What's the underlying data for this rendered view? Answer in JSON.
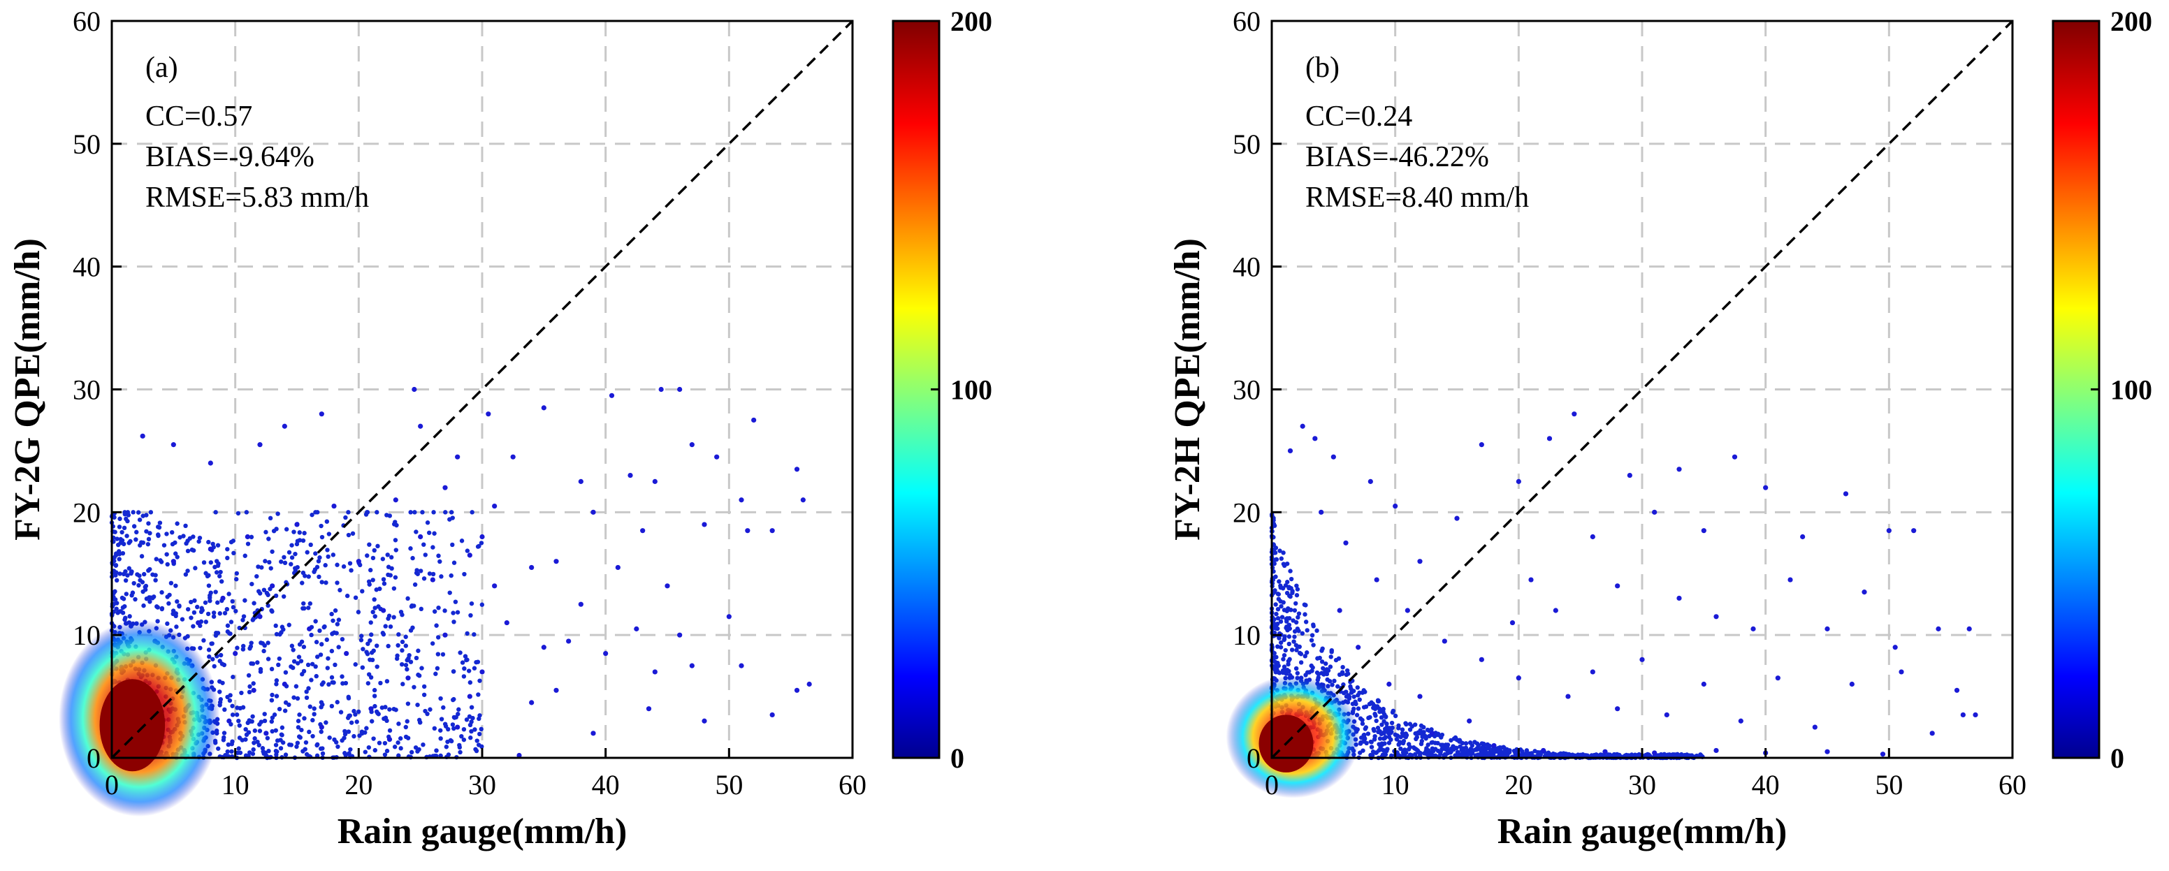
{
  "chart_data": [
    {
      "type": "scatter",
      "panel_label": "(a)",
      "xlabel": "Rain gauge(mm/h)",
      "ylabel": "FY-2G QPE(mm/h)",
      "xlim": [
        0,
        60
      ],
      "ylim": [
        0,
        60
      ],
      "xticks": [
        0,
        10,
        20,
        30,
        40,
        50,
        60
      ],
      "yticks": [
        0,
        10,
        20,
        30,
        40,
        50,
        60
      ],
      "grid": true,
      "reference_line": "1:1 dashed",
      "stats": [
        "CC=0.57",
        "BIAS=-9.64%",
        "RMSE=5.83 mm/h"
      ],
      "colorbar": {
        "min": 0,
        "max": 200,
        "ticks": [
          0,
          100,
          200
        ],
        "colormap": "jet"
      },
      "density_core": {
        "x_range": [
          0,
          4
        ],
        "y_range": [
          0,
          6
        ]
      },
      "sample_points": [
        [
          2.5,
          26.2
        ],
        [
          5.0,
          25.5
        ],
        [
          8.0,
          24.0
        ],
        [
          12.0,
          25.5
        ],
        [
          14.0,
          27.0
        ],
        [
          17.0,
          28.0
        ],
        [
          24.5,
          30.0
        ],
        [
          25.0,
          27.0
        ],
        [
          28.0,
          24.5
        ],
        [
          30.5,
          28.0
        ],
        [
          35.0,
          28.5
        ],
        [
          44.5,
          30.0
        ],
        [
          46.0,
          30.0
        ],
        [
          52.0,
          27.5
        ],
        [
          40.5,
          29.5
        ],
        [
          47.0,
          25.5
        ],
        [
          49.0,
          24.5
        ],
        [
          55.5,
          23.5
        ],
        [
          42.0,
          23.0
        ],
        [
          44.0,
          22.5
        ],
        [
          38.0,
          22.5
        ],
        [
          51.0,
          21.0
        ],
        [
          56.0,
          21.0
        ],
        [
          51.5,
          18.5
        ],
        [
          53.5,
          18.5
        ],
        [
          48.0,
          19.0
        ],
        [
          43.0,
          18.5
        ],
        [
          39.0,
          20.0
        ],
        [
          30.0,
          18.0
        ],
        [
          34.0,
          15.5
        ],
        [
          36.0,
          16.0
        ],
        [
          41.0,
          15.5
        ],
        [
          45.0,
          14.0
        ],
        [
          31.0,
          14.0
        ],
        [
          38.0,
          12.5
        ],
        [
          42.5,
          10.5
        ],
        [
          46.0,
          10.0
        ],
        [
          50.0,
          11.5
        ],
        [
          32.0,
          11.0
        ],
        [
          35.0,
          9.0
        ],
        [
          37.0,
          9.5
        ],
        [
          40.0,
          8.5
        ],
        [
          44.0,
          7.0
        ],
        [
          47.0,
          7.5
        ],
        [
          51.0,
          7.5
        ],
        [
          55.5,
          5.5
        ],
        [
          56.5,
          6.0
        ],
        [
          53.5,
          3.5
        ],
        [
          48.0,
          3.0
        ],
        [
          43.5,
          4.0
        ],
        [
          39.0,
          2.0
        ],
        [
          34.0,
          4.5
        ],
        [
          36.0,
          5.5
        ],
        [
          30.0,
          7.0
        ],
        [
          29.0,
          5.0
        ],
        [
          33.0,
          0.2
        ],
        [
          27.0,
          10.0
        ],
        [
          22.0,
          12.0
        ],
        [
          26.0,
          14.5
        ],
        [
          20.0,
          16.0
        ],
        [
          23.0,
          21.0
        ],
        [
          27.0,
          22.0
        ],
        [
          32.5,
          24.5
        ],
        [
          18.0,
          20.5
        ],
        [
          15.0,
          19.0
        ],
        [
          11.0,
          18.0
        ],
        [
          8.0,
          17.0
        ],
        [
          5.0,
          16.0
        ],
        [
          9.0,
          13.0
        ],
        [
          12.0,
          11.5
        ],
        [
          16.0,
          10.5
        ],
        [
          19.0,
          8.5
        ],
        [
          24.0,
          6.5
        ],
        [
          21.0,
          4.0
        ],
        [
          17.0,
          2.5
        ],
        [
          14.0,
          6.0
        ],
        [
          10.0,
          8.5
        ],
        [
          7.0,
          11.0
        ],
        [
          13.0,
          14.0
        ],
        [
          25.0,
          18.0
        ],
        [
          29.0,
          16.5
        ],
        [
          31.0,
          20.5
        ],
        [
          28.0,
          2.5
        ],
        [
          22.5,
          1.5
        ],
        [
          6.0,
          4.0
        ],
        [
          9.5,
          3.0
        ],
        [
          11.5,
          5.5
        ],
        [
          3.5,
          9.5
        ],
        [
          6.5,
          7.5
        ],
        [
          12.5,
          2.0
        ]
      ]
    },
    {
      "type": "scatter",
      "panel_label": "(b)",
      "xlabel": "Rain gauge(mm/h)",
      "ylabel": "FY-2H QPE(mm/h)",
      "xlim": [
        0,
        60
      ],
      "ylim": [
        0,
        60
      ],
      "xticks": [
        0,
        10,
        20,
        30,
        40,
        50,
        60
      ],
      "yticks": [
        0,
        10,
        20,
        30,
        40,
        50,
        60
      ],
      "grid": true,
      "reference_line": "1:1 dashed",
      "stats": [
        "CC=0.24",
        "BIAS=-46.22%",
        "RMSE=8.40 mm/h"
      ],
      "colorbar": {
        "min": 0,
        "max": 200,
        "ticks": [
          0,
          100,
          200
        ],
        "colormap": "jet"
      },
      "density_core": {
        "x_range": [
          0,
          3
        ],
        "y_range": [
          0,
          3
        ]
      },
      "sample_points": [
        [
          2.5,
          27.0
        ],
        [
          3.5,
          26.0
        ],
        [
          1.5,
          25.0
        ],
        [
          5.0,
          24.5
        ],
        [
          24.5,
          28.0
        ],
        [
          17.0,
          25.5
        ],
        [
          22.5,
          26.0
        ],
        [
          8.0,
          22.5
        ],
        [
          20.0,
          22.5
        ],
        [
          29.0,
          23.0
        ],
        [
          33.0,
          23.5
        ],
        [
          37.5,
          24.5
        ],
        [
          40.0,
          22.0
        ],
        [
          46.5,
          21.5
        ],
        [
          43.0,
          18.0
        ],
        [
          50.0,
          18.5
        ],
        [
          52.0,
          18.5
        ],
        [
          31.0,
          20.0
        ],
        [
          35.0,
          18.5
        ],
        [
          26.0,
          18.0
        ],
        [
          15.0,
          19.5
        ],
        [
          12.0,
          16.0
        ],
        [
          10.0,
          20.5
        ],
        [
          21.0,
          14.5
        ],
        [
          28.0,
          14.0
        ],
        [
          33.0,
          13.0
        ],
        [
          42.0,
          14.5
        ],
        [
          48.0,
          13.5
        ],
        [
          23.0,
          12.0
        ],
        [
          19.5,
          11.0
        ],
        [
          36.0,
          11.5
        ],
        [
          39.0,
          10.5
        ],
        [
          45.0,
          10.5
        ],
        [
          50.5,
          9.0
        ],
        [
          54.0,
          10.5
        ],
        [
          56.5,
          10.5
        ],
        [
          30.0,
          8.0
        ],
        [
          26.0,
          7.0
        ],
        [
          35.0,
          6.0
        ],
        [
          41.0,
          6.5
        ],
        [
          47.0,
          6.0
        ],
        [
          51.0,
          7.0
        ],
        [
          55.5,
          5.5
        ],
        [
          56.0,
          3.5
        ],
        [
          57.0,
          3.5
        ],
        [
          53.5,
          2.0
        ],
        [
          44.0,
          2.5
        ],
        [
          38.0,
          3.0
        ],
        [
          32.0,
          3.5
        ],
        [
          28.0,
          4.0
        ],
        [
          24.0,
          5.0
        ],
        [
          20.0,
          6.5
        ],
        [
          17.0,
          8.0
        ],
        [
          14.0,
          9.5
        ],
        [
          11.0,
          12.0
        ],
        [
          8.5,
          14.5
        ],
        [
          6.0,
          17.5
        ],
        [
          4.0,
          20.0
        ],
        [
          18.0,
          1.0
        ],
        [
          22.0,
          0.6
        ],
        [
          27.0,
          0.5
        ],
        [
          31.0,
          0.4
        ],
        [
          36.0,
          0.6
        ],
        [
          40.0,
          0.4
        ],
        [
          45.0,
          0.5
        ],
        [
          49.5,
          0.3
        ],
        [
          13.0,
          2.0
        ],
        [
          16.0,
          3.0
        ],
        [
          9.5,
          6.0
        ],
        [
          12.0,
          5.0
        ],
        [
          7.0,
          9.0
        ],
        [
          5.5,
          12.0
        ]
      ]
    }
  ]
}
